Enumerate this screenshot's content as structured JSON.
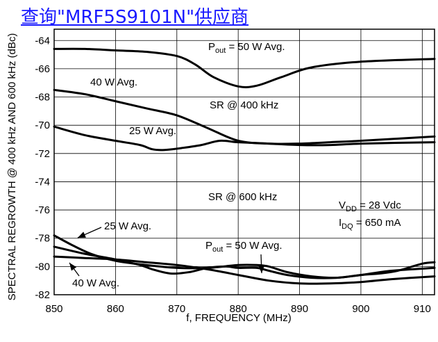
{
  "header_link": "查询\"MRF5S9101N\"供应商",
  "chart_data": {
    "type": "line",
    "xlabel": "f, FREQUENCY (MHz)",
    "ylabel": "SPECTRAL REGROWTH @ 400 kHz AND 600 kHz (dBc)",
    "xlim": [
      850,
      912
    ],
    "ylim": [
      -82,
      -63.2
    ],
    "xticks": [
      850,
      860,
      870,
      880,
      890,
      900,
      910
    ],
    "yticks": [
      -64,
      -66,
      -68,
      -70,
      -72,
      -74,
      -76,
      -78,
      -80,
      -82
    ],
    "grid": true,
    "series": [
      {
        "name": "50 W Avg. SR @ 400 kHz",
        "x": [
          850,
          855,
          860,
          865,
          870,
          873,
          876,
          880,
          883,
          887,
          892,
          900,
          912
        ],
        "y": [
          -64.6,
          -64.6,
          -64.7,
          -64.8,
          -65.1,
          -65.7,
          -66.6,
          -67.25,
          -67.2,
          -66.6,
          -65.9,
          -65.5,
          -65.3
        ]
      },
      {
        "name": "40 W Avg. SR @ 400 kHz",
        "x": [
          850,
          855,
          860,
          865,
          870,
          875,
          880,
          885,
          890,
          895,
          900,
          912
        ],
        "y": [
          -67.5,
          -67.8,
          -68.3,
          -68.8,
          -69.3,
          -70.2,
          -71.1,
          -71.3,
          -71.3,
          -71.2,
          -71.1,
          -70.8
        ]
      },
      {
        "name": "25 W Avg. SR @ 400 kHz",
        "x": [
          850,
          855,
          860,
          864,
          866,
          868,
          871,
          874,
          877,
          880,
          885,
          890,
          895,
          900,
          912
        ],
        "y": [
          -70.1,
          -70.7,
          -71.1,
          -71.4,
          -71.7,
          -71.75,
          -71.6,
          -71.4,
          -71.1,
          -71.2,
          -71.3,
          -71.4,
          -71.4,
          -71.3,
          -71.2
        ]
      },
      {
        "name": "50 W Avg. SR @ 600 kHz",
        "x": [
          850,
          855,
          860,
          865,
          870,
          875,
          880,
          885,
          890,
          895,
          900,
          905,
          912
        ],
        "y": [
          -79.3,
          -79.4,
          -79.5,
          -79.7,
          -79.9,
          -80.2,
          -80.6,
          -81.0,
          -81.2,
          -81.2,
          -81.1,
          -80.9,
          -80.7
        ]
      },
      {
        "name": "40 W Avg. SR @ 600 kHz",
        "x": [
          850,
          855,
          860,
          864,
          866,
          869,
          872,
          875,
          878,
          880,
          883,
          885,
          888,
          892,
          896,
          900,
          905,
          912
        ],
        "y": [
          -78.6,
          -79.1,
          -79.5,
          -79.9,
          -80.2,
          -80.5,
          -80.4,
          -80.1,
          -80.0,
          -80.1,
          -80.1,
          -80.3,
          -80.6,
          -80.8,
          -80.8,
          -80.6,
          -80.3,
          -80.1
        ]
      },
      {
        "name": "25 W Avg. SR @ 600 kHz",
        "x": [
          850,
          853,
          856,
          860,
          865,
          870,
          875,
          880,
          883,
          885,
          888,
          892,
          896,
          900,
          903,
          906,
          910,
          912
        ],
        "y": [
          -77.8,
          -78.5,
          -79.1,
          -79.6,
          -79.9,
          -80.1,
          -80.1,
          -79.9,
          -79.9,
          -80.0,
          -80.4,
          -80.7,
          -80.8,
          -80.6,
          -80.5,
          -80.3,
          -79.8,
          -79.7
        ]
      }
    ],
    "annotations": {
      "p50_top_main": "P",
      "p50_top_sub": "out",
      "p50_top_rest": " = 50 W Avg.",
      "w40_top": "40 W Avg.",
      "sr400": "SR @ 400 kHz",
      "w25_top": "25 W Avg.",
      "sr600": "SR @ 600 kHz",
      "vdd_main": "V",
      "vdd_sub": "DD",
      "vdd_rest": " = 28 Vdc",
      "idq_main": "I",
      "idq_sub": "DQ",
      "idq_rest": " = 650 mA",
      "w25_bottom": "25 W Avg.",
      "p50_bottom_main": "P",
      "p50_bottom_sub": "out",
      "p50_bottom_rest": " = 50 W Avg.",
      "w40_bottom": "40 W Avg."
    }
  }
}
